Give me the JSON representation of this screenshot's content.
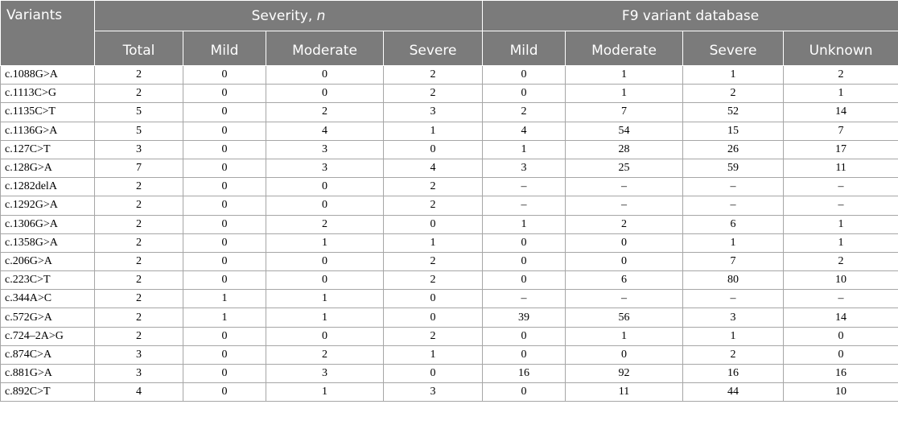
{
  "header": {
    "variants": "Variants",
    "severity_group": "Severity, ",
    "severity_group_italic": "n",
    "database_group": "F9 variant database",
    "sub": [
      "Total",
      "Mild",
      "Moderate",
      "Severe",
      "Mild",
      "Moderate",
      "Severe",
      "Unknown"
    ]
  },
  "rows": [
    [
      "c.1088G>A",
      "2",
      "0",
      "0",
      "2",
      "0",
      "1",
      "1",
      "2"
    ],
    [
      "c.1113C>G",
      "2",
      "0",
      "0",
      "2",
      "0",
      "1",
      "2",
      "1"
    ],
    [
      "c.1135C>T",
      "5",
      "0",
      "2",
      "3",
      "2",
      "7",
      "52",
      "14"
    ],
    [
      "c.1136G>A",
      "5",
      "0",
      "4",
      "1",
      "4",
      "54",
      "15",
      "7"
    ],
    [
      "c.127C>T",
      "3",
      "0",
      "3",
      "0",
      "1",
      "28",
      "26",
      "17"
    ],
    [
      "c.128G>A",
      "7",
      "0",
      "3",
      "4",
      "3",
      "25",
      "59",
      "11"
    ],
    [
      "c.1282delA",
      "2",
      "0",
      "0",
      "2",
      "–",
      "–",
      "–",
      "–"
    ],
    [
      "c.1292G>A",
      "2",
      "0",
      "0",
      "2",
      "–",
      "–",
      "–",
      "–"
    ],
    [
      "c.1306G>A",
      "2",
      "0",
      "2",
      "0",
      "1",
      "2",
      "6",
      "1"
    ],
    [
      "c.1358G>A",
      "2",
      "0",
      "1",
      "1",
      "0",
      "0",
      "1",
      "1"
    ],
    [
      "c.206G>A",
      "2",
      "0",
      "0",
      "2",
      "0",
      "0",
      "7",
      "2"
    ],
    [
      "c.223C>T",
      "2",
      "0",
      "0",
      "2",
      "0",
      "6",
      "80",
      "10"
    ],
    [
      "c.344A>C",
      "2",
      "1",
      "1",
      "0",
      "–",
      "–",
      "–",
      "–"
    ],
    [
      "c.572G>A",
      "2",
      "1",
      "1",
      "0",
      "39",
      "56",
      "3",
      "14"
    ],
    [
      "c.724–2A>G",
      "2",
      "0",
      "0",
      "2",
      "0",
      "1",
      "1",
      "0"
    ],
    [
      "c.874C>A",
      "3",
      "0",
      "2",
      "1",
      "0",
      "0",
      "2",
      "0"
    ],
    [
      "c.881G>A",
      "3",
      "0",
      "3",
      "0",
      "16",
      "92",
      "16",
      "16"
    ],
    [
      "c.892C>T",
      "4",
      "0",
      "1",
      "3",
      "0",
      "11",
      "44",
      "10"
    ]
  ]
}
